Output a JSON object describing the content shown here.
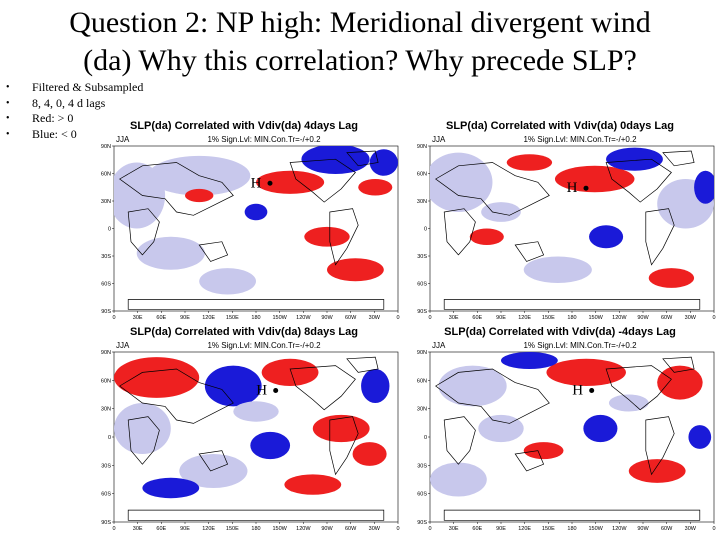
{
  "slide": {
    "title_line1": "Question 2: NP high: Meridional divergent wind",
    "title_line2": "(da) Why this correlation? Why precede SLP?",
    "bullets": [
      "Filtered & Subsampled",
      "8, 4, 0, 4 d lags",
      "Red: > 0",
      "Blue: < 0"
    ]
  },
  "colors": {
    "positive": "#ee2020",
    "negative": "#1a1ad8",
    "weak_positive": "#f5b5b5",
    "weak_negative": "#c8c8ec",
    "land": "#000000"
  },
  "panels": [
    {
      "title": "SLP(da) Correlated with Vdiv(da) 4days Lag",
      "season": "JJA",
      "subtitle": "1% Sign.Lvl: MIN.Con.Tr=-/+0.2",
      "h_label": "H"
    },
    {
      "title": "SLP(da) Correlated with Vdiv(da) 0days Lag",
      "season": "JJA",
      "subtitle": "1% Sign.Lvl: MIN.Con.Tr=-/+0.2",
      "h_label": "H"
    },
    {
      "title": "SLP(da) Correlated with Vdiv(da) 8days Lag",
      "season": "JJA",
      "subtitle": "1% Sign.Lvl: MIN.Con.Tr=-/+0.2",
      "h_label": "H"
    },
    {
      "title": "SLP(da) Correlated with Vdiv(da) -4days Lag",
      "season": "JJA",
      "subtitle": "1% Sign.Lvl: MIN.Con.Tr=-/+0.2",
      "h_label": "H"
    }
  ],
  "map_axes": {
    "lat_labels": [
      "90N",
      "60N",
      "30N",
      "0",
      "30S",
      "60S",
      "90S"
    ],
    "lon_labels": [
      "0",
      "30E",
      "60E",
      "90E",
      "120E",
      "150E",
      "180",
      "150W",
      "120W",
      "90W",
      "60W",
      "30W",
      "0"
    ]
  }
}
